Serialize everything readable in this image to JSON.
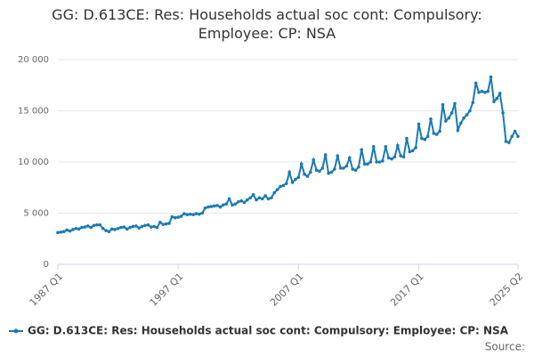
{
  "chart_data": {
    "type": "line",
    "title": "GG: D.613CE: Res: Households actual soc cont: Compulsory: Employee: CP: NSA",
    "source": "Source:",
    "categories": [
      "1987 Q1",
      "1987 Q2",
      "1987 Q3",
      "1987 Q4",
      "1988 Q1",
      "1988 Q2",
      "1988 Q3",
      "1988 Q4",
      "1989 Q1",
      "1989 Q2",
      "1989 Q3",
      "1989 Q4",
      "1990 Q1",
      "1990 Q2",
      "1990 Q3",
      "1990 Q4",
      "1991 Q1",
      "1991 Q2",
      "1991 Q3",
      "1991 Q4",
      "1992 Q1",
      "1992 Q2",
      "1992 Q3",
      "1992 Q4",
      "1993 Q1",
      "1993 Q2",
      "1993 Q3",
      "1993 Q4",
      "1994 Q1",
      "1994 Q2",
      "1994 Q3",
      "1994 Q4",
      "1995 Q1",
      "1995 Q2",
      "1995 Q3",
      "1995 Q4",
      "1996 Q1",
      "1996 Q2",
      "1996 Q3",
      "1996 Q4",
      "1997 Q1",
      "1997 Q2",
      "1997 Q3",
      "1997 Q4",
      "1998 Q1",
      "1998 Q2",
      "1998 Q3",
      "1998 Q4",
      "1999 Q1",
      "1999 Q2",
      "1999 Q3",
      "1999 Q4",
      "2000 Q1",
      "2000 Q2",
      "2000 Q3",
      "2000 Q4",
      "2001 Q1",
      "2001 Q2",
      "2001 Q3",
      "2001 Q4",
      "2002 Q1",
      "2002 Q2",
      "2002 Q3",
      "2002 Q4",
      "2003 Q1",
      "2003 Q2",
      "2003 Q3",
      "2003 Q4",
      "2004 Q1",
      "2004 Q2",
      "2004 Q3",
      "2004 Q4",
      "2005 Q1",
      "2005 Q2",
      "2005 Q3",
      "2005 Q4",
      "2006 Q1",
      "2006 Q2",
      "2006 Q3",
      "2006 Q4",
      "2007 Q1",
      "2007 Q2",
      "2007 Q3",
      "2007 Q4",
      "2008 Q1",
      "2008 Q2",
      "2008 Q3",
      "2008 Q4",
      "2009 Q1",
      "2009 Q2",
      "2009 Q3",
      "2009 Q4",
      "2010 Q1",
      "2010 Q2",
      "2010 Q3",
      "2010 Q4",
      "2011 Q1",
      "2011 Q2",
      "2011 Q3",
      "2011 Q4",
      "2012 Q1",
      "2012 Q2",
      "2012 Q3",
      "2012 Q4",
      "2013 Q1",
      "2013 Q2",
      "2013 Q3",
      "2013 Q4",
      "2014 Q1",
      "2014 Q2",
      "2014 Q3",
      "2014 Q4",
      "2015 Q1",
      "2015 Q2",
      "2015 Q3",
      "2015 Q4",
      "2016 Q1",
      "2016 Q2",
      "2016 Q3",
      "2016 Q4",
      "2017 Q1",
      "2017 Q2",
      "2017 Q3",
      "2017 Q4",
      "2018 Q1",
      "2018 Q2",
      "2018 Q3",
      "2018 Q4",
      "2019 Q1",
      "2019 Q2",
      "2019 Q3",
      "2019 Q4",
      "2020 Q1",
      "2020 Q2",
      "2020 Q3",
      "2020 Q4",
      "2021 Q1",
      "2021 Q2",
      "2021 Q3",
      "2021 Q4",
      "2022 Q1",
      "2022 Q2",
      "2022 Q3",
      "2022 Q4",
      "2023 Q1",
      "2023 Q2",
      "2023 Q3",
      "2023 Q4",
      "2024 Q1",
      "2024 Q2",
      "2024 Q3",
      "2024 Q4",
      "2025 Q1",
      "2025 Q2"
    ],
    "series": [
      {
        "name": "GG: D.613CE: Res: Households actual soc cont: Compulsory: Employee: CP: NSA",
        "color": "#1a7ab5",
        "values": [
          3100,
          3150,
          3200,
          3350,
          3250,
          3400,
          3500,
          3450,
          3600,
          3650,
          3750,
          3600,
          3800,
          3850,
          3850,
          3500,
          3300,
          3200,
          3450,
          3400,
          3500,
          3600,
          3650,
          3450,
          3600,
          3700,
          3750,
          3550,
          3700,
          3800,
          3850,
          3650,
          3700,
          3600,
          4100,
          3900,
          3950,
          4000,
          4650,
          4550,
          4600,
          4700,
          4950,
          4850,
          4900,
          4850,
          4950,
          4900,
          5000,
          5500,
          5600,
          5650,
          5700,
          5750,
          5600,
          5800,
          5900,
          6400,
          5800,
          5900,
          6100,
          6200,
          6050,
          6300,
          6500,
          6800,
          6300,
          6500,
          6400,
          6700,
          6400,
          6500,
          7000,
          7300,
          7600,
          7700,
          7900,
          9000,
          8000,
          8300,
          8500,
          9800,
          8800,
          8600,
          9000,
          10200,
          9200,
          9100,
          9400,
          10700,
          8900,
          9000,
          9300,
          10600,
          9400,
          9400,
          9600,
          10400,
          9300,
          9200,
          9500,
          11200,
          9800,
          9800,
          10000,
          11500,
          10000,
          10000,
          10100,
          11500,
          10400,
          10300,
          10500,
          11600,
          10600,
          10500,
          12300,
          11000,
          11100,
          11400,
          13700,
          12300,
          12200,
          12500,
          14200,
          12800,
          12700,
          13000,
          15600,
          14000,
          14300,
          14800,
          15700,
          13100,
          13800,
          14300,
          14600,
          15000,
          15800,
          17700,
          16800,
          16900,
          16800,
          16900,
          18300,
          15900,
          16200,
          16700,
          14800,
          12000,
          11900,
          12500,
          13000,
          12500
        ]
      }
    ],
    "ylim": [
      0,
      20000
    ],
    "yticks": [
      0,
      {
        "value": 5000,
        "label": "5 000"
      },
      {
        "value": 10000,
        "label": "10 000"
      },
      {
        "value": 15000,
        "label": "15 000"
      },
      {
        "value": 20000,
        "label": "20 000"
      }
    ],
    "grid": true
  }
}
